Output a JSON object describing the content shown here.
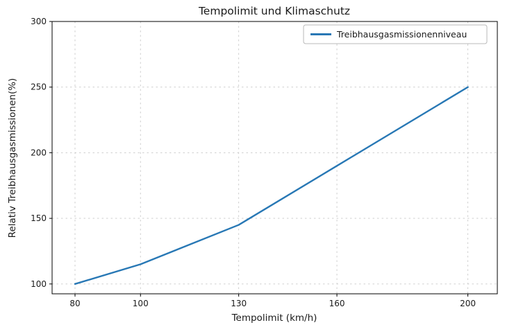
{
  "figure": {
    "background": "#ffffff"
  },
  "chart_data": {
    "type": "line",
    "title": "Tempolimit und Klimaschutz",
    "xlabel": "Tempolimit (km/h)",
    "ylabel": "Relativ Treibhausgasmissionen(%)",
    "x": [
      80,
      100,
      130,
      160,
      200
    ],
    "series": [
      {
        "name": "Treibhausgasmissionenniveau",
        "values": [
          100,
          115,
          145,
          190,
          250
        ],
        "color": "#2878b5"
      }
    ],
    "xticks": [
      80,
      100,
      130,
      160,
      200
    ],
    "yticks": [
      100,
      150,
      200,
      250,
      300
    ],
    "xlim": [
      73,
      209
    ],
    "ylim": [
      92.5,
      300
    ],
    "grid": true,
    "grid_style": "dashed",
    "legend_position": "upper right"
  }
}
